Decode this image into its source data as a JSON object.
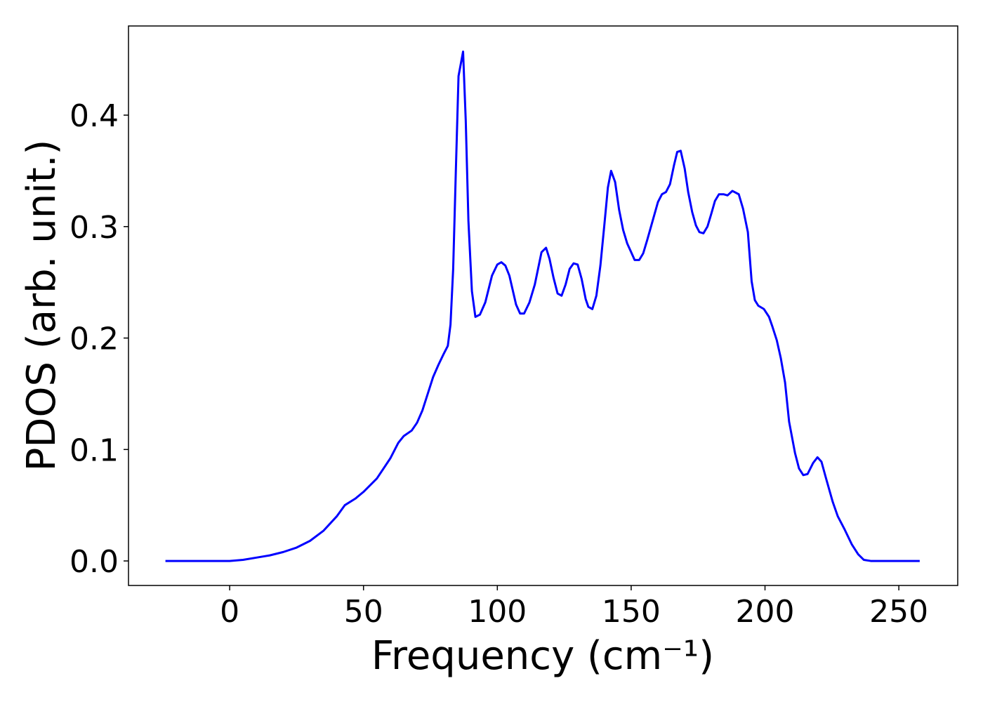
{
  "chart_data": {
    "type": "line",
    "xlabel": "Frequency (cm⁻¹)",
    "ylabel": "PDOS (arb. unit.)",
    "xlim": [
      -37.8,
      272.0
    ],
    "ylim": [
      -0.022,
      0.48
    ],
    "xticks": [
      0,
      50,
      100,
      150,
      200,
      250
    ],
    "yticks": [
      {
        "value": 0,
        "label": "0.0"
      },
      0.1,
      0.2,
      0.3,
      0.4
    ],
    "grid": false,
    "series": [
      {
        "color": "#0000ff",
        "x": [
          -24,
          -15,
          -5,
          0,
          5,
          10,
          15,
          20,
          25,
          30,
          35,
          40,
          43,
          47,
          50,
          55,
          60,
          63,
          65,
          68,
          70,
          72,
          74,
          76,
          78,
          80,
          81.5,
          82.5,
          83.5,
          84.5,
          85.5,
          87.2,
          88.2,
          89.2,
          90.5,
          91.8,
          93.5,
          95.5,
          98,
          100,
          101.5,
          103,
          104.5,
          107,
          108.5,
          110,
          112,
          114,
          116.5,
          118.2,
          119.5,
          121,
          122.5,
          124,
          125.5,
          127,
          128.5,
          130,
          131.5,
          133,
          134,
          135.5,
          137,
          138.5,
          140,
          141.3,
          142.5,
          144,
          145.5,
          147,
          148.5,
          150,
          151.3,
          153,
          154.5,
          156,
          158,
          160,
          161.5,
          163,
          164.5,
          166,
          167.2,
          168.5,
          170,
          171.3,
          172.8,
          174.2,
          175.5,
          177,
          178.5,
          180,
          181.3,
          182.8,
          184.5,
          186,
          187.8,
          190.2,
          191.8,
          193.6,
          195,
          196.2,
          197.5,
          199.6,
          201.5,
          202.8,
          204.4,
          205.9,
          207.5,
          209,
          211.2,
          212.7,
          214.3,
          215.9,
          218,
          219.6,
          221.1,
          222.7,
          225.3,
          227.2,
          229.8,
          232.4,
          234.8,
          236.9,
          239.5,
          245,
          250,
          257.8
        ],
        "values": [
          0,
          0,
          0,
          0,
          0.001,
          0.003,
          0.005,
          0.008,
          0.012,
          0.018,
          0.027,
          0.04,
          0.05,
          0.056,
          0.062,
          0.074,
          0.092,
          0.106,
          0.112,
          0.117,
          0.124,
          0.135,
          0.15,
          0.165,
          0.176,
          0.186,
          0.193,
          0.212,
          0.262,
          0.35,
          0.435,
          0.457,
          0.395,
          0.305,
          0.242,
          0.219,
          0.221,
          0.232,
          0.256,
          0.266,
          0.268,
          0.265,
          0.256,
          0.23,
          0.222,
          0.222,
          0.232,
          0.248,
          0.277,
          0.281,
          0.271,
          0.254,
          0.24,
          0.238,
          0.248,
          0.262,
          0.267,
          0.266,
          0.253,
          0.235,
          0.228,
          0.226,
          0.238,
          0.265,
          0.302,
          0.335,
          0.35,
          0.34,
          0.315,
          0.297,
          0.285,
          0.277,
          0.27,
          0.27,
          0.276,
          0.288,
          0.305,
          0.322,
          0.329,
          0.331,
          0.338,
          0.355,
          0.367,
          0.368,
          0.352,
          0.331,
          0.313,
          0.301,
          0.295,
          0.294,
          0.3,
          0.312,
          0.323,
          0.329,
          0.329,
          0.328,
          0.332,
          0.329,
          0.316,
          0.295,
          0.251,
          0.234,
          0.229,
          0.226,
          0.219,
          0.21,
          0.198,
          0.182,
          0.16,
          0.125,
          0.097,
          0.083,
          0.077,
          0.078,
          0.088,
          0.093,
          0.089,
          0.075,
          0.053,
          0.04,
          0.028,
          0.015,
          0.006,
          0.001,
          0,
          0,
          0,
          0
        ]
      }
    ]
  }
}
